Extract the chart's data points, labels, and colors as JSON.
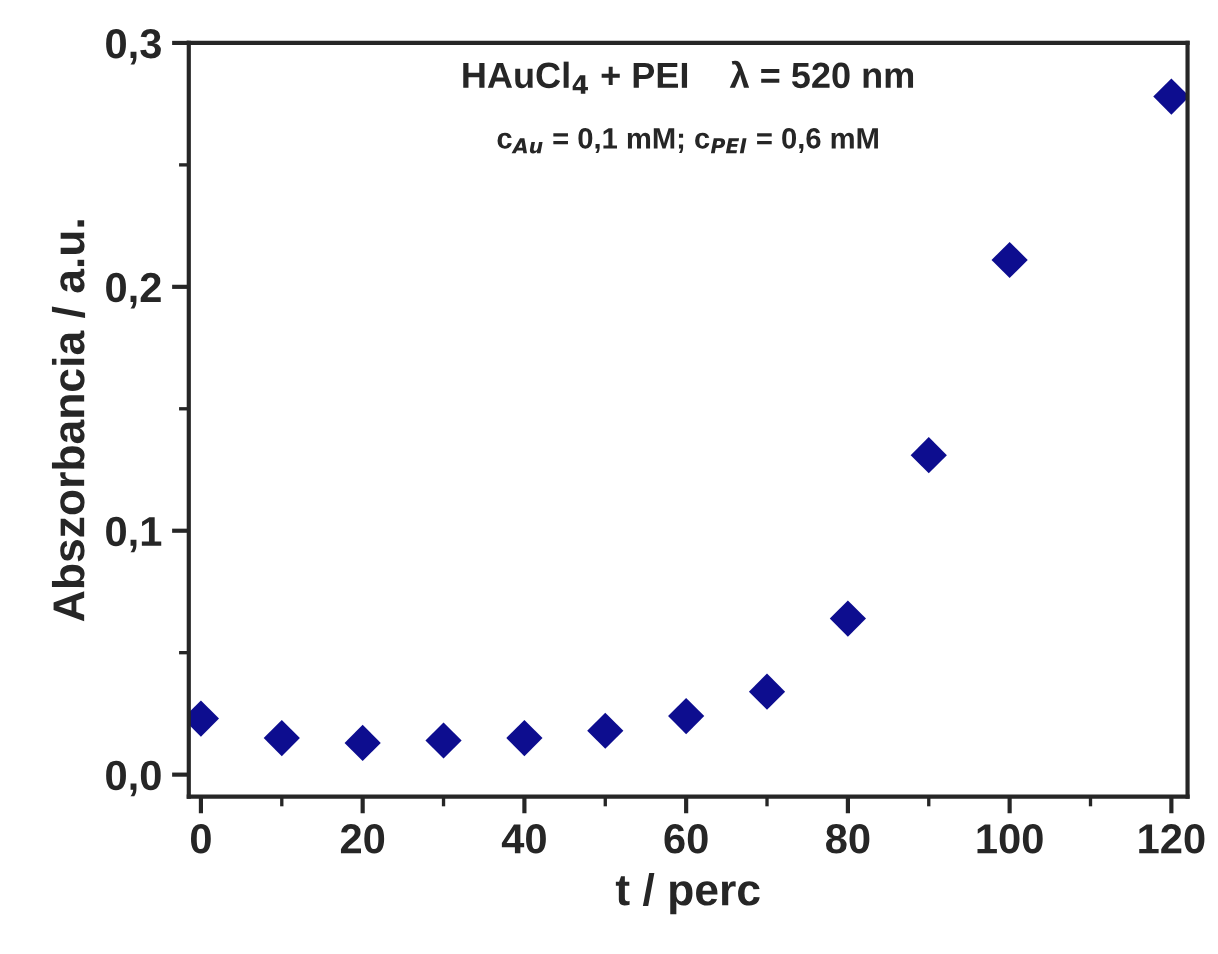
{
  "chart_data": {
    "type": "scatter",
    "title": "HAuCl$_{4}$ + PEI    λ = 520 nm",
    "subtitle": "c$_{Au}$ = 0,1 mM; c$_{PEI}$ = 0,6 mM",
    "xlabel": "t / perc",
    "ylabel": "Abszorbancia / a.u.",
    "x": [
      0,
      10,
      20,
      30,
      40,
      50,
      60,
      70,
      80,
      90,
      100,
      120
    ],
    "series": [
      {
        "color": "#0d0d8f",
        "values": [
          0.023,
          0.015,
          0.013,
          0.014,
          0.015,
          0.018,
          0.024,
          0.034,
          0.064,
          0.131,
          0.211,
          0.278
        ]
      }
    ],
    "marker": "diamond",
    "grid": false,
    "legend": false,
    "xlim": [
      -1.5,
      122
    ],
    "xticks": [
      0,
      20,
      40,
      60,
      80,
      100,
      120
    ],
    "ylim": [
      -0.009,
      0.3
    ],
    "yticks": [
      {
        "value": 0,
        "label": "0,0"
      },
      {
        "value": 0.1,
        "label": "0,1"
      },
      {
        "value": 0.2,
        "label": "0,2"
      },
      {
        "value": 0.3,
        "label": "0,3"
      }
    ]
  }
}
